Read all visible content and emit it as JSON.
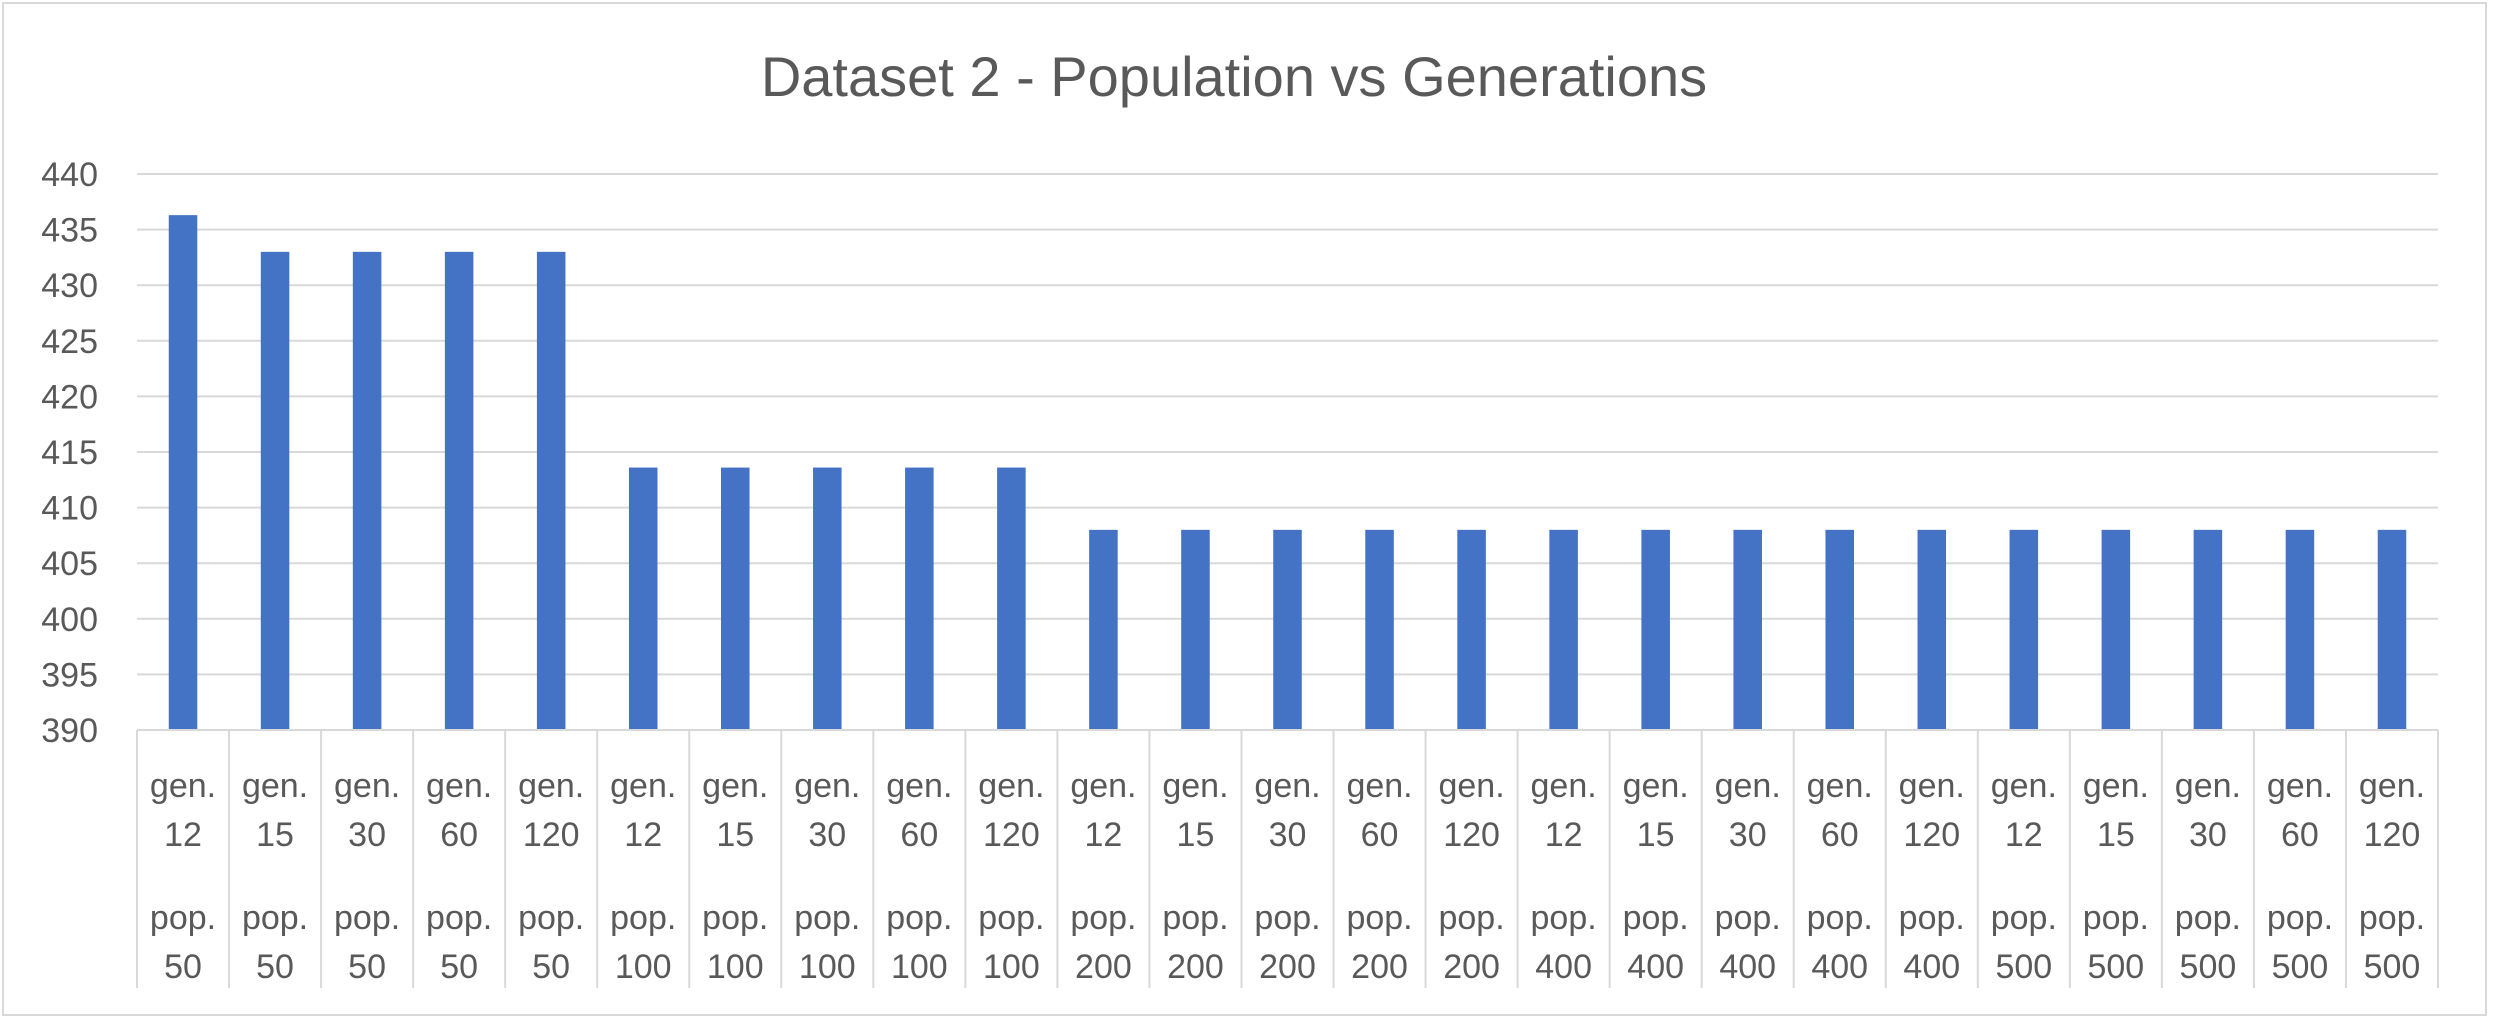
{
  "chart_data": {
    "type": "bar",
    "title": "Dataset 2 - Population vs Generations",
    "xlabel": "",
    "ylabel": "",
    "ylim": [
      390,
      440
    ],
    "yticks": [
      390,
      395,
      400,
      405,
      410,
      415,
      420,
      425,
      430,
      435,
      440
    ],
    "grid": true,
    "legend": "none",
    "bar_color": "#4472C4",
    "categories": [
      [
        "gen. 12",
        "pop. 50"
      ],
      [
        "gen. 15",
        "pop. 50"
      ],
      [
        "gen. 30",
        "pop. 50"
      ],
      [
        "gen. 60",
        "pop. 50"
      ],
      [
        "gen. 120",
        "pop. 50"
      ],
      [
        "gen. 12",
        "pop. 100"
      ],
      [
        "gen. 15",
        "pop. 100"
      ],
      [
        "gen. 30",
        "pop. 100"
      ],
      [
        "gen. 60",
        "pop. 100"
      ],
      [
        "gen. 120",
        "pop. 100"
      ],
      [
        "gen. 12",
        "pop. 200"
      ],
      [
        "gen. 15",
        "pop. 200"
      ],
      [
        "gen. 30",
        "pop. 200"
      ],
      [
        "gen. 60",
        "pop. 200"
      ],
      [
        "gen. 120",
        "pop. 200"
      ],
      [
        "gen. 12",
        "pop. 400"
      ],
      [
        "gen. 15",
        "pop. 400"
      ],
      [
        "gen. 30",
        "pop. 400"
      ],
      [
        "gen. 60",
        "pop. 400"
      ],
      [
        "gen. 120",
        "pop. 400"
      ],
      [
        "gen. 12",
        "pop. 500"
      ],
      [
        "gen. 15",
        "pop. 500"
      ],
      [
        "gen. 30",
        "pop. 500"
      ],
      [
        "gen. 60",
        "pop. 500"
      ],
      [
        "gen. 120",
        "pop. 500"
      ]
    ],
    "values": [
      436.3,
      433,
      433,
      433,
      433,
      413.6,
      413.6,
      413.6,
      413.6,
      413.6,
      408,
      408,
      408,
      408,
      408,
      408,
      408,
      408,
      408,
      408,
      408,
      408,
      408,
      408,
      408
    ]
  }
}
